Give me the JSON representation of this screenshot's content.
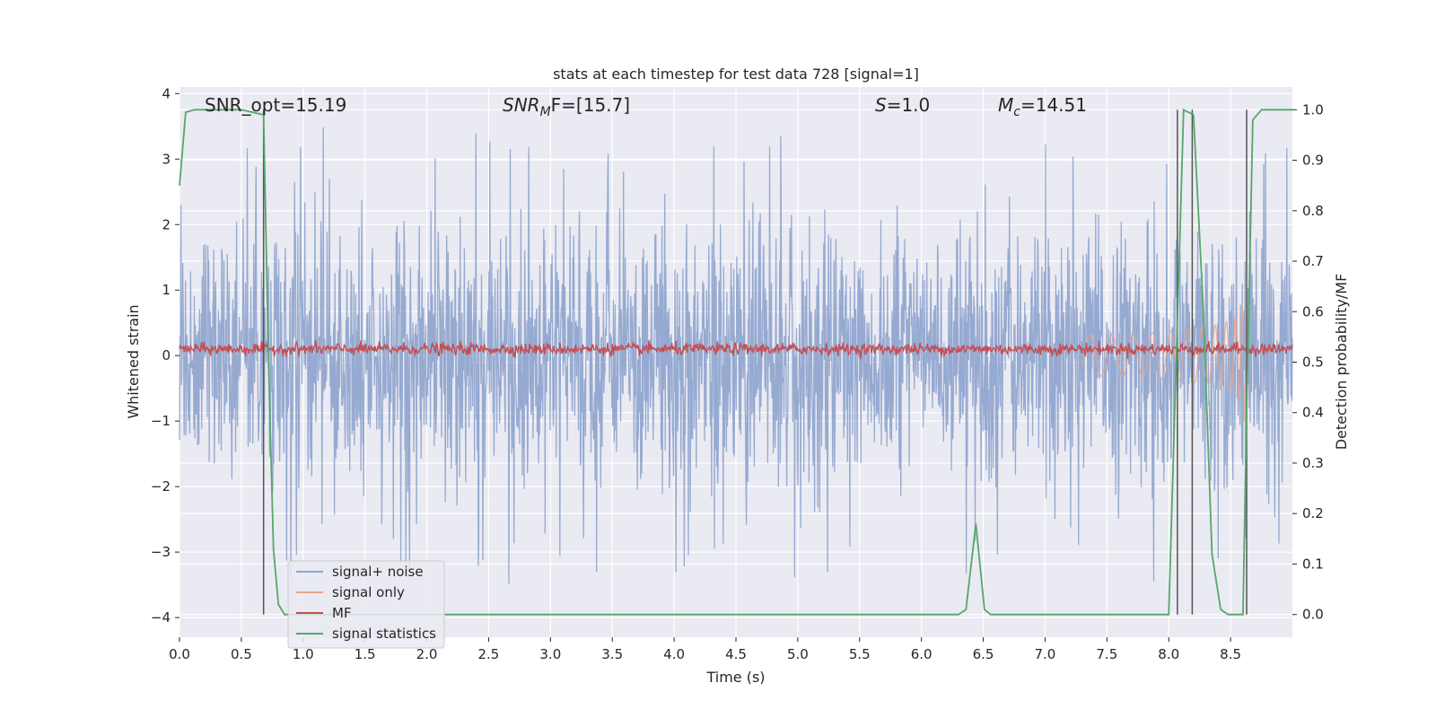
{
  "chart_data": {
    "type": "line",
    "title": "stats at each timestep for test data 728 [signal=1]",
    "xlabel": "Time (s)",
    "ylabel": "Whitened strain",
    "y2label": "Detection probability/MF",
    "xlim": [
      0.0,
      9.0
    ],
    "ylim": [
      -4.3,
      4.1
    ],
    "y2lim": [
      -0.045,
      1.045
    ],
    "xticks": [
      "0.0",
      "0.5",
      "1.0",
      "1.5",
      "2.0",
      "2.5",
      "3.0",
      "3.5",
      "4.0",
      "4.5",
      "5.0",
      "5.5",
      "6.0",
      "6.5",
      "7.0",
      "7.5",
      "8.0",
      "8.5"
    ],
    "yticks": [
      "4",
      "3",
      "2",
      "1",
      "0",
      "−1",
      "−2",
      "−3",
      "−4"
    ],
    "y2ticks": [
      "1.0",
      "0.9",
      "0.8",
      "0.7",
      "0.6",
      "0.5",
      "0.4",
      "0.3",
      "0.2",
      "0.1",
      "0.0"
    ],
    "grid": true,
    "legend_position": "lower-left",
    "annotations": {
      "snr_opt": "SNR_opt=15.19",
      "snr_mf_prefix": "SNR",
      "snr_mf_sub": "M",
      "snr_mf_suffix": "F=[15.7]",
      "s_italic": "S",
      "s_value": "=1.0",
      "mc_italic": "M",
      "mc_sub": "c",
      "mc_value": "=14.51"
    },
    "colors": {
      "signal_noise": "#8da3cd",
      "signal_only": "#e8a68a",
      "mf": "#c44e52",
      "stats": "#55a868",
      "vline": "#555555",
      "background": "#eaeaf2"
    },
    "series": [
      {
        "name": "signal+ noise",
        "color": "#8da3cd",
        "note": "noisy whitened strain, amplitude ~±2 with spikes to ±3.5"
      },
      {
        "name": "signal only",
        "color": "#e8a68a",
        "note": "chirp growing in amplitude toward t≈8.6 s, peak ~±1.6"
      },
      {
        "name": "MF",
        "color": "#c44e52",
        "note": "matched filter output ~0.05–0.25"
      },
      {
        "name": "signal statistics",
        "color": "#55a868",
        "axis": "right",
        "x": [
          0.0,
          0.05,
          0.12,
          0.5,
          0.68,
          0.72,
          0.76,
          0.8,
          0.85,
          6.3,
          6.36,
          6.44,
          6.51,
          6.56,
          8.0,
          8.06,
          8.12,
          8.2,
          8.28,
          8.35,
          8.42,
          8.48,
          8.6,
          8.63,
          8.68,
          8.75,
          9.0
        ],
        "y": [
          0.85,
          0.995,
          1.0,
          1.0,
          0.99,
          0.5,
          0.13,
          0.02,
          0.0,
          0.0,
          0.01,
          0.18,
          0.01,
          0.0,
          0.0,
          0.5,
          1.0,
          0.99,
          0.6,
          0.12,
          0.01,
          0.0,
          0.0,
          0.4,
          0.98,
          1.0,
          1.0
        ]
      }
    ],
    "vlines_x": [
      0.68,
      8.07,
      8.19,
      8.63
    ],
    "legend": [
      "signal+ noise",
      "signal only",
      "MF",
      "signal statistics"
    ]
  }
}
